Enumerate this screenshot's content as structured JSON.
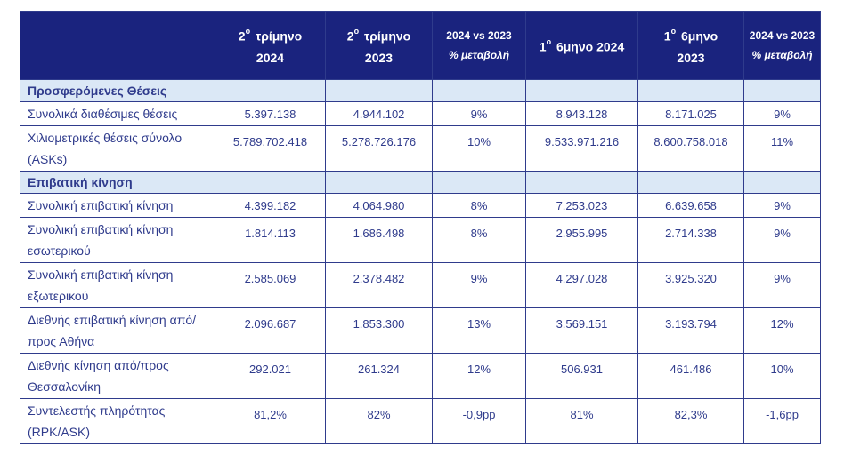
{
  "header": {
    "cols": [
      {
        "sup": "ο",
        "line1": "τρίμηνο",
        "line2": "2024",
        "pre": "2"
      },
      {
        "sup": "ο",
        "line1": "τρίμηνο",
        "line2": "2023",
        "pre": "2"
      },
      {
        "line1": "2024 vs 2023",
        "line2": "% μεταβολή"
      },
      {
        "sup": "ο",
        "line1": "6μηνο 2024",
        "line2": "",
        "pre": "1"
      },
      {
        "sup": "ο",
        "line1": "6μηνο",
        "line2": "2023",
        "pre": "1"
      },
      {
        "line1": "2024 vs 2023",
        "line2": "% μεταβολή"
      }
    ]
  },
  "sections": [
    {
      "title": "Προσφερόμενες Θέσεις",
      "rows": [
        {
          "label": "Συνολικά διαθέσιμες θέσεις",
          "values": [
            "5.397.138",
            "4.944.102",
            "9%",
            "8.943.128",
            "8.171.025",
            "9%"
          ]
        },
        {
          "label": "Χιλιομετρικές θέσεις σύνολο (ASKs)",
          "values": [
            "5.789.702.418",
            "5.278.726.176",
            "10%",
            "9.533.971.216",
            "8.600.758.018",
            "11%"
          ]
        }
      ]
    },
    {
      "title": "Επιβατική κίνηση",
      "rows": [
        {
          "label": "Συνολική επιβατική κίνηση",
          "values": [
            "4.399.182",
            "4.064.980",
            "8%",
            "7.253.023",
            "6.639.658",
            "9%"
          ]
        },
        {
          "label": "Συνολική επιβατική κίνηση εσωτερικού",
          "values": [
            "1.814.113",
            "1.686.498",
            "8%",
            "2.955.995",
            "2.714.338",
            "9%"
          ]
        },
        {
          "label": "Συνολική επιβατική κίνηση εξωτερικού",
          "values": [
            "2.585.069",
            "2.378.482",
            "9%",
            "4.297.028",
            "3.925.320",
            "9%"
          ]
        },
        {
          "label": "Διεθνής επιβατική κίνηση από/προς Αθήνα",
          "values": [
            "2.096.687",
            "1.853.300",
            "13%",
            "3.569.151",
            "3.193.794",
            "12%"
          ]
        },
        {
          "label": "Διεθνής κίνηση  από/προς Θεσσαλονίκη",
          "values": [
            "292.021",
            "261.324",
            "12%",
            "506.931",
            "461.486",
            "10%"
          ]
        },
        {
          "label": "Συντελεστής πληρότητας (RPK/ASK)",
          "values": [
            "81,2%",
            "82%",
            "-0,9pp",
            "81%",
            "82,3%",
            "-1,6pp"
          ]
        }
      ]
    }
  ],
  "colors": {
    "header_bg": "#1a237e",
    "section_bg": "#dbe8f6",
    "text": "#2f3b8c",
    "border": "#2f3b8c"
  }
}
